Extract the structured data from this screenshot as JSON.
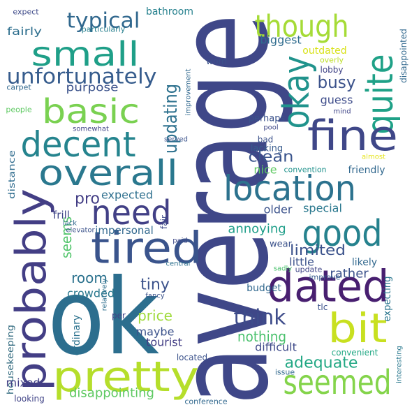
{
  "words": [
    "average",
    "ok",
    "pretty",
    "probably",
    "tired",
    "need",
    "overall",
    "decent",
    "basic",
    "small",
    "unfortunately",
    "typical",
    "purpose",
    "fairly",
    "expect",
    "particularly",
    "bathroom",
    "carpet",
    "people",
    "somewhat",
    "distance",
    "updating",
    "though",
    "quite",
    "okay",
    "fine",
    "location",
    "good",
    "dated",
    "bit",
    "seemed",
    "think",
    "nothing",
    "adequate",
    "expecting",
    "rather",
    "likely",
    "limited",
    "little",
    "sadly",
    "update",
    "improve",
    "wear",
    "older",
    "special",
    "nice",
    "friendly",
    "convention",
    "clean",
    "lacking",
    "bad",
    "perhaps",
    "pool",
    "served",
    "guess",
    "busy",
    "disappointed",
    "improvement",
    "mind",
    "outdated",
    "overly",
    "biggest",
    "lobby",
    "worn",
    "almost",
    "expected",
    "pro",
    "frill",
    "seems",
    "lack",
    "elevator",
    "impersonal",
    "fair",
    "paid",
    "annoying",
    "room",
    "tiny",
    "crowded",
    "central",
    "price",
    "maybe",
    "fancy",
    "budget",
    "relatively",
    "ordinary",
    "per",
    "tlc",
    "housekeeping",
    "tourist",
    "difficult",
    "located",
    "issue",
    "convenient",
    "interesting",
    "mixed",
    "disappointing",
    "looking",
    "conference"
  ]
}
